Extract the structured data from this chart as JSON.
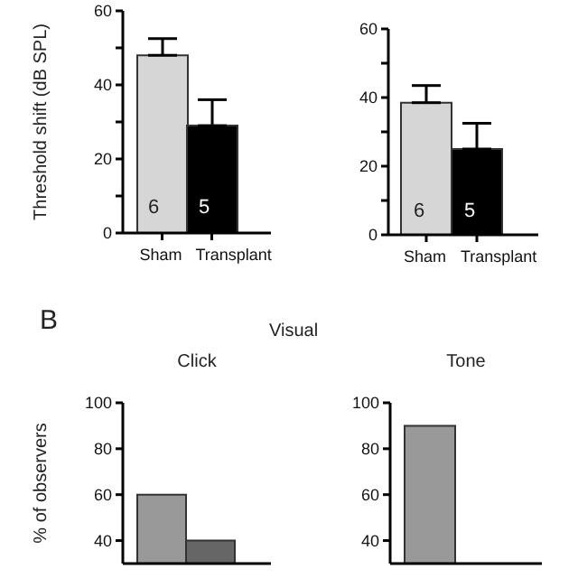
{
  "chart_data": [
    {
      "type": "bar",
      "ylabel": "Threshold shift (dB SPL)",
      "categories": [
        "Sham",
        "Transplant"
      ],
      "colors": [
        "#d6d6d6",
        "#000000"
      ],
      "values": [
        48,
        29
      ],
      "errors": [
        [
          48,
          52.5
        ],
        [
          29,
          36
        ]
      ],
      "ylim": [
        0,
        60
      ],
      "yticks": [
        0,
        {
          "value": 10,
          "label": null
        },
        20,
        {
          "value": 30,
          "label": null
        },
        40,
        {
          "value": 50,
          "label": null
        },
        60
      ],
      "annotations": [
        "6",
        "5"
      ]
    },
    {
      "type": "bar",
      "categories": [
        "Sham",
        "Transplant"
      ],
      "colors": [
        "#d6d6d6",
        "#000000"
      ],
      "values": [
        38.5,
        25
      ],
      "errors": [
        [
          38.5,
          43.5
        ],
        [
          25,
          32.5
        ]
      ],
      "ylim": [
        0,
        60
      ],
      "yticks": [
        0,
        {
          "value": 10,
          "label": null
        },
        20,
        {
          "value": 30,
          "label": null
        },
        40,
        {
          "value": 50,
          "label": null
        },
        60
      ],
      "annotations": [
        "6",
        "5"
      ]
    },
    {
      "type": "bar",
      "title": "Click",
      "ylabel": "% of observers",
      "categories": [
        null,
        null
      ],
      "colors": [
        "#999999",
        "#666666"
      ],
      "values": [
        60,
        40
      ],
      "ylim": [
        30,
        100
      ],
      "yticks": [
        40,
        60,
        80,
        100
      ],
      "annotations": [
        "B",
        "Visual"
      ]
    },
    {
      "type": "bar",
      "title": "Tone",
      "categories": [
        null,
        null
      ],
      "colors": [
        "#999999",
        "#666666"
      ],
      "values": [
        90,
        null
      ],
      "ylim": [
        30,
        100
      ],
      "yticks": [
        40,
        60,
        80,
        100
      ]
    }
  ]
}
